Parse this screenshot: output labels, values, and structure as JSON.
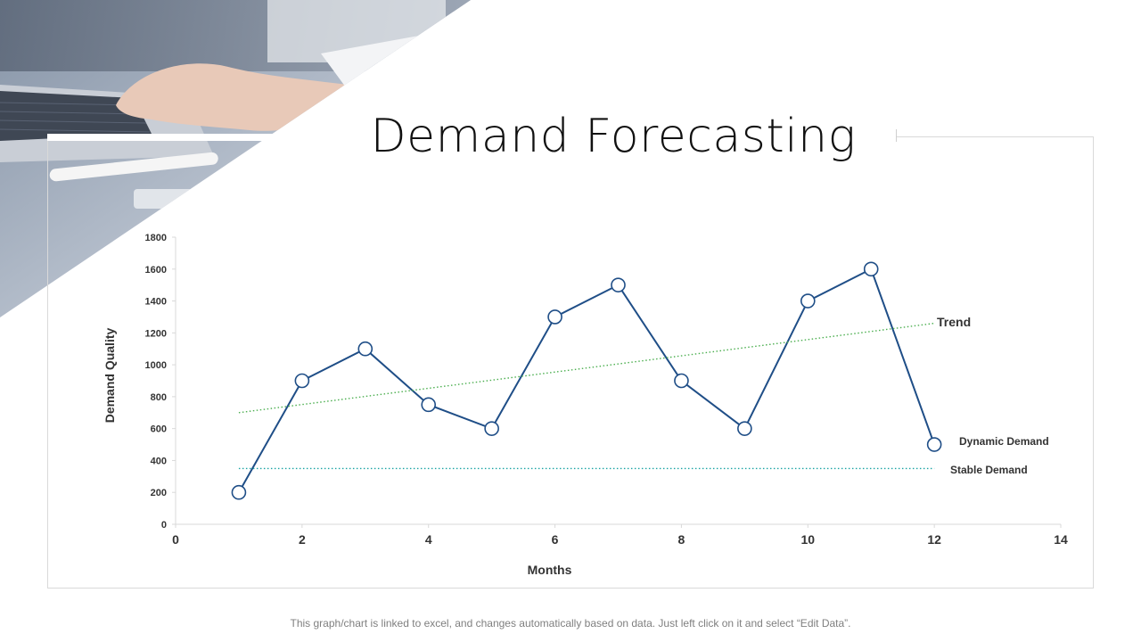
{
  "title": "Demand Forecasting",
  "footnote": "This graph/chart is linked to excel, and changes automatically based on data. Just left click on it and select “Edit Data”.",
  "colors": {
    "dynamic": "#1f4e87",
    "trend": "#4caf50",
    "stable": "#1aa3a3",
    "axis": "#d9d9d9",
    "text": "#333333"
  },
  "chart_data": {
    "type": "line",
    "title": "",
    "xlabel": "Months",
    "ylabel": "Demand Quality",
    "xlim": [
      0,
      14
    ],
    "ylim": [
      0,
      1800
    ],
    "x_ticks": [
      0,
      2,
      4,
      6,
      8,
      10,
      12,
      14
    ],
    "y_ticks": [
      0,
      200,
      400,
      600,
      800,
      1000,
      1200,
      1400,
      1600,
      1800
    ],
    "grid": false,
    "series": [
      {
        "name": "Dynamic Demand",
        "style": "solid-markers",
        "x": [
          1,
          2,
          3,
          4,
          5,
          6,
          7,
          8,
          9,
          10,
          11,
          12
        ],
        "y": [
          200,
          900,
          1100,
          750,
          600,
          1300,
          1500,
          900,
          600,
          1400,
          1600,
          500
        ]
      },
      {
        "name": "Trend",
        "style": "dotted",
        "x": [
          1,
          12
        ],
        "y": [
          700,
          1260
        ]
      },
      {
        "name": "Stable Demand",
        "style": "dotted",
        "x": [
          1,
          12
        ],
        "y": [
          350,
          350
        ]
      }
    ]
  }
}
